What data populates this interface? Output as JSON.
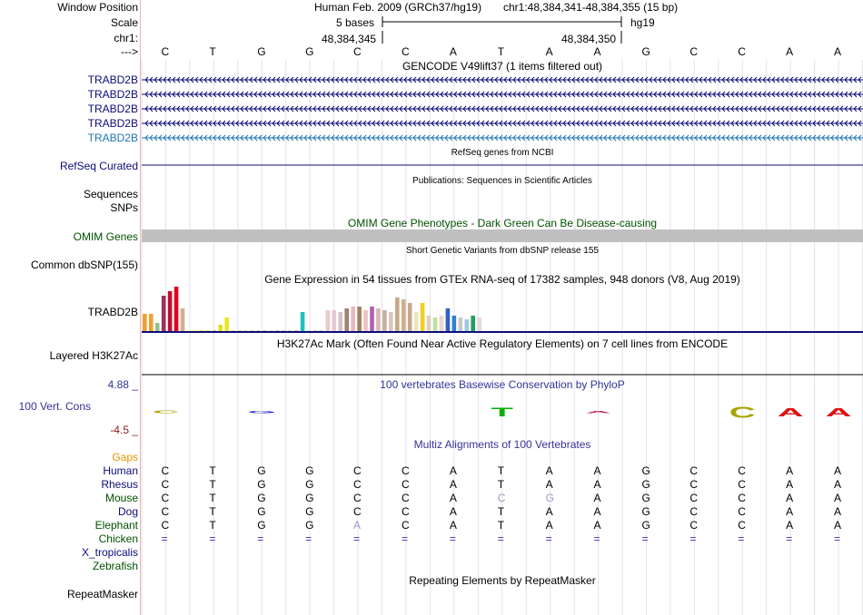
{
  "colors": {
    "gene_dark": "#0c0c78",
    "gene_teal": "#1f77b4",
    "omim_green": "#005000",
    "gaps_orange": "#e69500",
    "cons_blue": "#333399",
    "cons_red": "#8b1a1a",
    "tick_blue": "#3333aa",
    "base_black": "#000000"
  },
  "header": {
    "window_position_label": "Window Position",
    "scale_label": "Scale",
    "chrom_label": "chr1:",
    "arrow_label": "--->",
    "assembly_text": "Human Feb. 2009 (GRCh37/hg19)",
    "position_text": "chr1:48,384,341-48,384,355 (15 bp)",
    "scale_text": "5 bases",
    "db_text": "hg19",
    "coord_left": "48,384,345",
    "coord_right": "48,384,350"
  },
  "bases": [
    "C",
    "T",
    "G",
    "G",
    "C",
    "C",
    "A",
    "T",
    "A",
    "A",
    "G",
    "C",
    "C",
    "A",
    "A"
  ],
  "tracks": {
    "gencode": {
      "title": "GENCODE V49lift37 (1 items filtered out)",
      "items": [
        "TRABD2B",
        "TRABD2B",
        "TRABD2B",
        "TRABD2B",
        "TRABD2B"
      ]
    },
    "refseq": {
      "title": "RefSeq genes from NCBI",
      "label": "RefSeq Curated"
    },
    "publications": {
      "title": "Publications: Sequences in Scientific Articles",
      "label1": "Sequences",
      "label2": "SNPs"
    },
    "omim": {
      "title": "OMIM Gene Phenotypes - Dark Green Can Be Disease-causing",
      "label": "OMIM Genes"
    },
    "dbsnp": {
      "title": "Short Genetic Variants from dbSNP release 155",
      "label": "Common dbSNP(155)"
    },
    "gtex": {
      "title": "Gene Expression in 54 tissues from GTEx RNA-seq of 17382 samples, 948 donors (V8, Aug 2019)",
      "label": "TRABD2B",
      "levels": [
        0.4,
        0.4,
        0.2,
        0.8,
        0.9,
        1.0,
        0.52,
        0.04,
        0.04,
        0.04,
        0.04,
        0.04,
        0.16,
        0.32,
        0.04,
        0.04,
        0.04,
        0.04,
        0.04,
        0.04,
        0.04,
        0.04,
        0.04,
        0.04,
        0.04,
        0.44,
        0.04,
        0.04,
        0.04,
        0.48,
        0.48,
        0.44,
        0.52,
        0.56,
        0.56,
        0.48,
        0.56,
        0.52,
        0.48,
        0.44,
        0.76,
        0.72,
        0.64,
        0.44,
        0.64,
        0.36,
        0.32,
        0.36,
        0.52,
        0.36,
        0.32,
        0.28,
        0.36,
        0.32
      ],
      "colors": [
        "#f0a030",
        "#f0a030",
        "#90c090",
        "#a03060",
        "#c01030",
        "#e00020",
        "#d0b090",
        "#ffff80",
        "#ffff80",
        "#e8e830",
        "#f0e060",
        "#d0d0a0",
        "#e0e020",
        "#e8e820",
        "#d8d8b0",
        "#d8d8b0",
        "#e0d8c0",
        "#d8d8b0",
        "#e0d0c0",
        "#d0c8b8",
        "#e0e0c0",
        "#d8c8c0",
        "#d0d0c0",
        "#d8d0c8",
        "#d0c8c8",
        "#20c0c0",
        "#e0d8d8",
        "#d0d0d0",
        "#d8c8c8",
        "#f0c8c8",
        "#e8c8d0",
        "#d8c0c8",
        "#a08070",
        "#e8b8c0",
        "#a08060",
        "#f0c0c0",
        "#b060b0",
        "#d8b8b0",
        "#c8b0a0",
        "#d8c8c0",
        "#c8a888",
        "#d0b090",
        "#c8a888",
        "#e8e8c0",
        "#f0d020",
        "#e0d0c0",
        "#c0e0a0",
        "#e8d8d0",
        "#3060c0",
        "#3080d0",
        "#c8c8c8",
        "#a0c8e0",
        "#20a060",
        "#e8d8d8"
      ]
    },
    "h3k27ac": {
      "title": "H3K27Ac Mark (Often Found Near Active Regulatory Elements) on 7 cell lines from ENCODE",
      "label": "Layered H3K27Ac"
    },
    "conservation": {
      "title": "100 vertebrates Basewise Conservation by PhyloP",
      "label": "100 Vert. Cons",
      "max_label": "4.88 _",
      "min_label": "-4.5 _",
      "logo": [
        {
          "letter": "C",
          "color": "#a8a400",
          "score": 0.12
        },
        {
          "letter": "",
          "color": "",
          "score": 0
        },
        {
          "letter": "G",
          "color": "#2a2ad0",
          "score": 0.08
        },
        {
          "letter": "",
          "color": "",
          "score": 0
        },
        {
          "letter": "",
          "color": "",
          "score": 0
        },
        {
          "letter": "",
          "color": "",
          "score": 0
        },
        {
          "letter": "",
          "color": "",
          "score": 0
        },
        {
          "letter": "T",
          "color": "#00b000",
          "score": 0.4
        },
        {
          "letter": "",
          "color": "",
          "score": 0
        },
        {
          "letter": "A",
          "color": "#c03060",
          "score": 0.04
        },
        {
          "letter": "",
          "color": "",
          "score": 0
        },
        {
          "letter": "",
          "color": "",
          "score": 0
        },
        {
          "letter": "C",
          "color": "#a8a400",
          "score": 0.5
        },
        {
          "letter": "A",
          "color": "#e01010",
          "score": 0.38
        },
        {
          "letter": "A",
          "color": "#e01010",
          "score": 0.38
        }
      ]
    },
    "multiz": {
      "title": "Multiz Alignments of 100 Vertebrates",
      "gaps_label": "Gaps",
      "species": [
        {
          "name": "Human",
          "color": "#0c0c78",
          "bases": [
            "C",
            "T",
            "G",
            "G",
            "C",
            "C",
            "A",
            "T",
            "A",
            "A",
            "G",
            "C",
            "C",
            "A",
            "A"
          ]
        },
        {
          "name": "Rhesus",
          "color": "#0c0c78",
          "bases": [
            "C",
            "T",
            "G",
            "G",
            "C",
            "C",
            "A",
            "T",
            "A",
            "A",
            "G",
            "C",
            "C",
            "A",
            "A"
          ]
        },
        {
          "name": "Mouse",
          "color": "#005000",
          "bases": [
            "C",
            "T",
            "G",
            "G",
            "C",
            "C",
            "A",
            "C",
            "G",
            "A",
            "G",
            "C",
            "C",
            "A",
            "A"
          ]
        },
        {
          "name": "Dog",
          "color": "#0c0c78",
          "bases": [
            "C",
            "T",
            "G",
            "G",
            "C",
            "C",
            "A",
            "T",
            "A",
            "A",
            "G",
            "C",
            "C",
            "A",
            "A"
          ]
        },
        {
          "name": "Elephant",
          "color": "#005000",
          "bases": [
            "C",
            "T",
            "G",
            "G",
            "A",
            "C",
            "A",
            "T",
            "A",
            "A",
            "G",
            "C",
            "C",
            "A",
            "A"
          ]
        },
        {
          "name": "Chicken",
          "color": "#005000",
          "bases": [
            "=",
            "=",
            "=",
            "=",
            "=",
            "=",
            "=",
            "=",
            "=",
            "=",
            "=",
            "=",
            "=",
            "=",
            "="
          ]
        },
        {
          "name": "X_tropicalis",
          "color": "#0c0c78",
          "bases": []
        },
        {
          "name": "Zebrafish",
          "color": "#005000",
          "bases": []
        }
      ],
      "mismatch": [
        {
          "row": 2,
          "col": 7
        },
        {
          "row": 2,
          "col": 8
        },
        {
          "row": 4,
          "col": 4
        }
      ]
    },
    "repeatmasker": {
      "title": "Repeating Elements by RepeatMasker",
      "label": "RepeatMasker"
    }
  }
}
